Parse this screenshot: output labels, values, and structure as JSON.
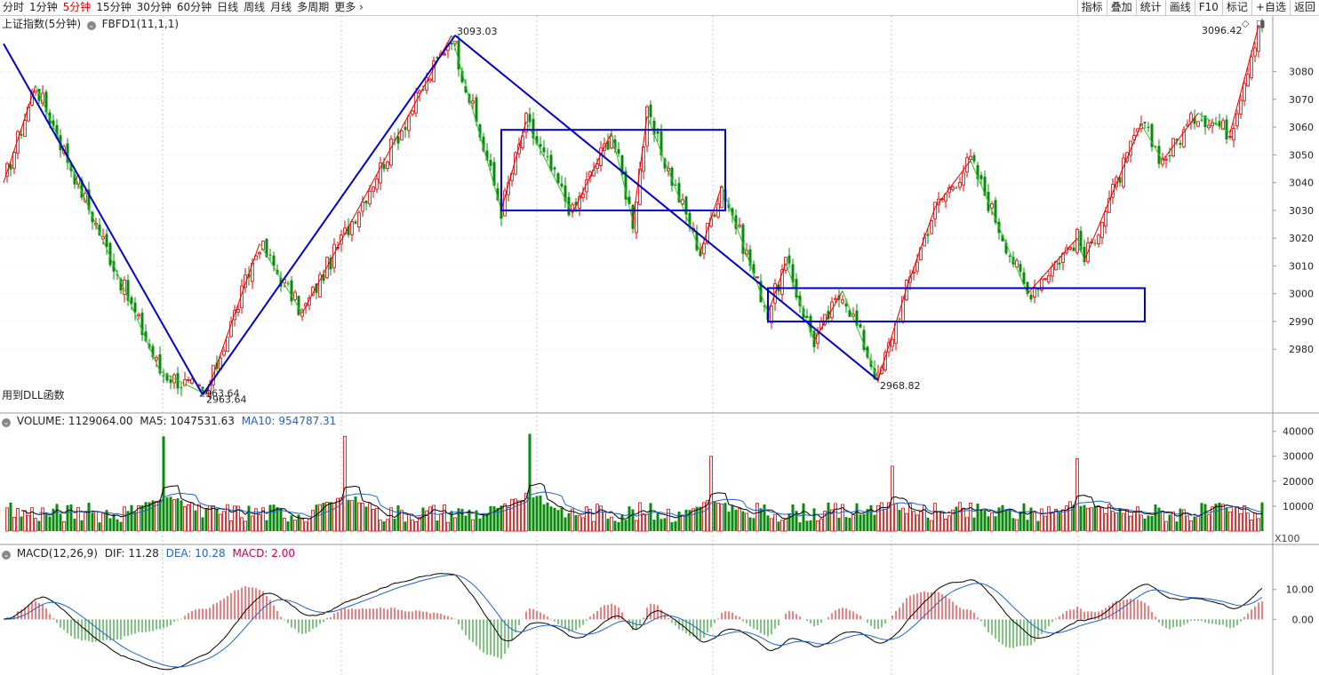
{
  "toolbar": {
    "periods": [
      "分时",
      "1分钟",
      "5分钟",
      "15分钟",
      "30分钟",
      "60分钟",
      "日线",
      "周线",
      "月线",
      "多周期"
    ],
    "active_period": "5分钟",
    "more_label": "更多",
    "right_buttons": [
      "指标",
      "叠加",
      "统计",
      "画线",
      "F10",
      "标记",
      "+自选",
      "返回"
    ]
  },
  "main_header": {
    "title": "上证指数(5分钟)",
    "indicator": "FBFD1(11,1,1)"
  },
  "dll_note": "用到DLL函数",
  "volume_header": {
    "label": "VOLUME: 1129064.00",
    "ma5": "MA5: 1047531.63",
    "ma10": "MA10: 954787.31",
    "unit": "X100"
  },
  "macd_header": {
    "label": "MACD(12,26,9)",
    "dif": "DIF: 11.28",
    "dea": "DEA: 10.28",
    "macd": "MACD: 2.00"
  },
  "price_annotations": {
    "high1": "3093.03",
    "low1": "2963.64",
    "low1b": "2963.64",
    "low2": "2968.82",
    "last": "3096.42"
  },
  "colors": {
    "up": "#e00000",
    "down": "#0a8a0a",
    "stroke": "#0000cc",
    "dif": "#000000",
    "dea": "#1e64c8"
  },
  "chart_data": [
    {
      "type": "candlestick",
      "title": "上证指数(5分钟)",
      "y_ticks": [
        2980,
        2990,
        3000,
        3010,
        3020,
        3030,
        3040,
        3050,
        3060,
        3070,
        3080
      ],
      "ylim": [
        2958,
        3100
      ],
      "pivots": [
        {
          "bar": 0,
          "price": 3040
        },
        {
          "bar": 9,
          "price": 3075
        },
        {
          "bar": 44,
          "price": 2972
        },
        {
          "bar": 57,
          "price": 2963.64
        },
        {
          "bar": 72,
          "price": 3018
        },
        {
          "bar": 84,
          "price": 2993
        },
        {
          "bar": 126,
          "price": 3093.03
        },
        {
          "bar": 140,
          "price": 3030
        },
        {
          "bar": 147,
          "price": 3062
        },
        {
          "bar": 160,
          "price": 3029
        },
        {
          "bar": 171,
          "price": 3058
        },
        {
          "bar": 177,
          "price": 3026
        },
        {
          "bar": 181,
          "price": 3064
        },
        {
          "bar": 196,
          "price": 3015
        },
        {
          "bar": 202,
          "price": 3039
        },
        {
          "bar": 215,
          "price": 2993
        },
        {
          "bar": 220,
          "price": 3011
        },
        {
          "bar": 228,
          "price": 2983
        },
        {
          "bar": 236,
          "price": 3001
        },
        {
          "bar": 246,
          "price": 2968.82
        },
        {
          "bar": 254,
          "price": 3002
        },
        {
          "bar": 262,
          "price": 3031
        },
        {
          "bar": 272,
          "price": 3048
        },
        {
          "bar": 288,
          "price": 3000
        },
        {
          "bar": 302,
          "price": 3020
        },
        {
          "bar": 304,
          "price": 3012
        },
        {
          "bar": 320,
          "price": 3061
        },
        {
          "bar": 326,
          "price": 3048
        },
        {
          "bar": 336,
          "price": 3065
        },
        {
          "bar": 345,
          "price": 3058
        },
        {
          "bar": 353,
          "price": 3096.42
        }
      ],
      "strokes": [
        {
          "from": [
            0,
            3090
          ],
          "to": [
            56,
            2963.64
          ]
        },
        {
          "from": [
            56,
            2963.64
          ],
          "to": [
            127,
            3093.03
          ]
        },
        {
          "from": [
            127,
            3093.03
          ],
          "to": [
            246,
            2968.82
          ]
        }
      ],
      "zones": [
        {
          "bar_start": 140,
          "bar_end": 203,
          "top": 3059,
          "bottom": 3030
        },
        {
          "bar_start": 215,
          "bar_end": 321,
          "top": 3002,
          "bottom": 2990
        }
      ]
    },
    {
      "type": "bar",
      "title": "VOLUME",
      "y_ticks": [
        10000,
        20000,
        30000,
        40000
      ],
      "ylim": [
        0,
        42000
      ],
      "base_level": 10000,
      "spikes": [
        {
          "bar": 45,
          "value": 38000
        },
        {
          "bar": 96,
          "value": 38000
        },
        {
          "bar": 148,
          "value": 39000
        },
        {
          "bar": 199,
          "value": 30000
        },
        {
          "bar": 250,
          "value": 26000
        },
        {
          "bar": 302,
          "value": 29000
        }
      ],
      "last": {
        "volume": 1129064.0,
        "ma5": 1047531.63,
        "ma10": 954787.31
      }
    },
    {
      "type": "line",
      "title": "MACD(12,26,9)",
      "y_ticks": [
        0.0,
        10.0
      ],
      "ylim": [
        -18,
        20
      ],
      "last": {
        "dif": 11.28,
        "dea": 10.28,
        "macd": 2.0
      }
    }
  ]
}
